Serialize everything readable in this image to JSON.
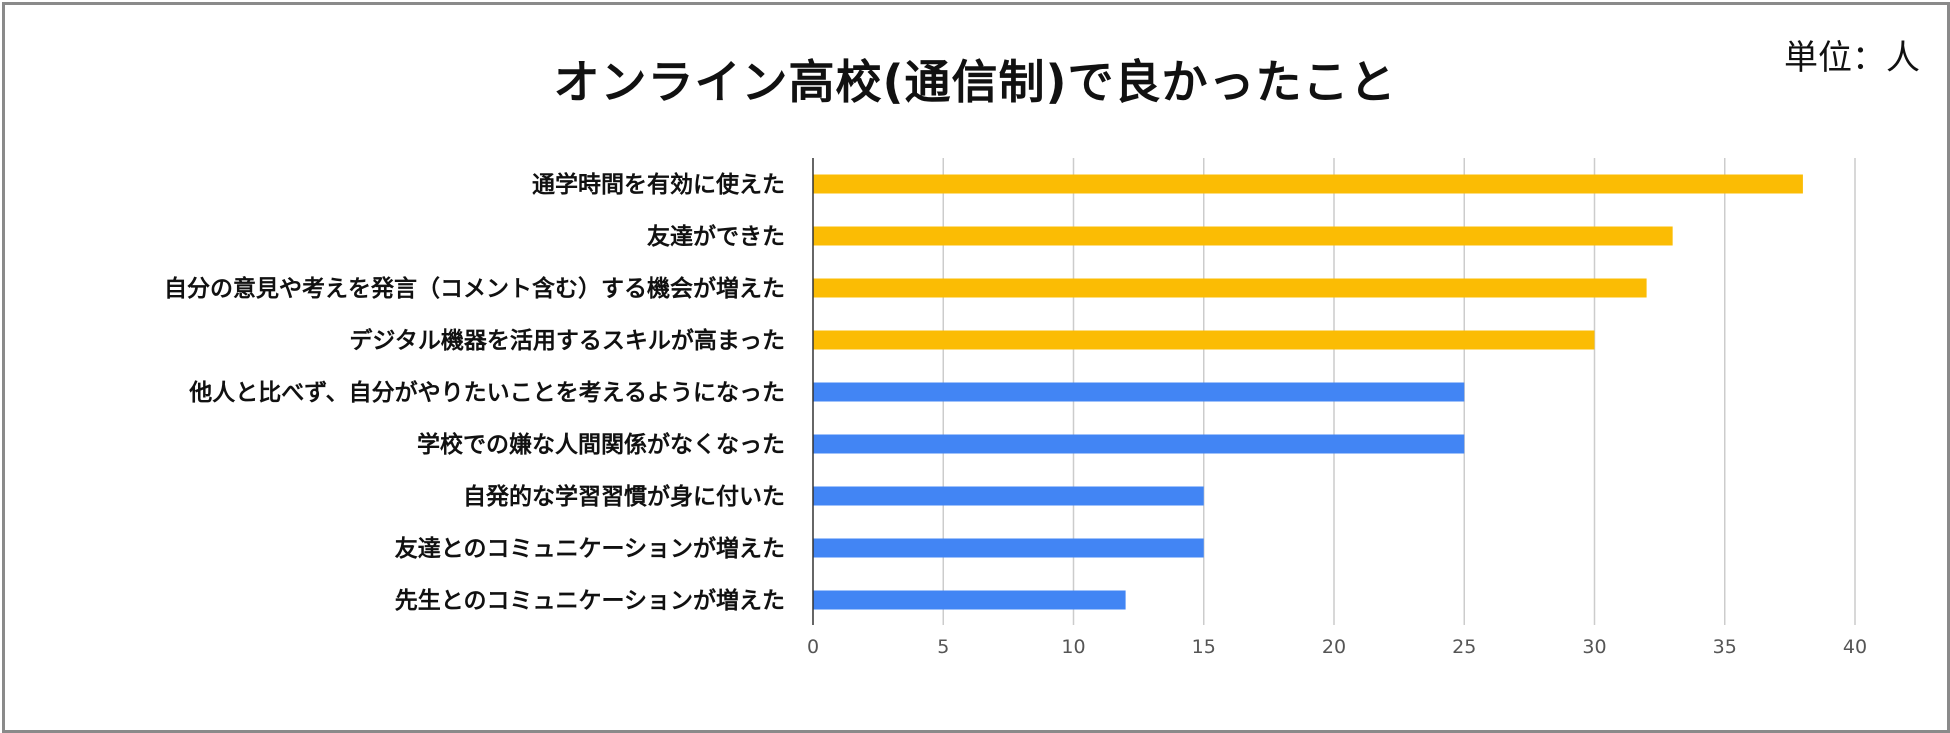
{
  "title": "オンライン高校(通信制)で良かったこと",
  "unit_label": "単位：人",
  "colors": {
    "highlight": "#FBBC04",
    "base": "#4285F4",
    "grid": "#cccccc",
    "axis": "#333333"
  },
  "chart_data": {
    "type": "bar",
    "orientation": "horizontal",
    "title": "オンライン高校(通信制)で良かったこと",
    "xlabel": "",
    "ylabel": "",
    "xlim": [
      0,
      40
    ],
    "x_ticks": [
      0,
      5,
      10,
      15,
      20,
      25,
      30,
      35,
      40
    ],
    "grid": true,
    "categories": [
      "通学時間を有効に使えた",
      "友達ができた",
      "自分の意見や考えを発言（コメント含む）する機会が増えた",
      "デジタル機器を活用するスキルが高まった",
      "他人と比べず、自分がやりたいことを考えるようになった",
      "学校での嫌な人間関係がなくなった",
      "自発的な学習習慣が身に付いた",
      "友達とのコミュニケーションが増えた",
      "先生とのコミュニケーションが増えた"
    ],
    "values": [
      38,
      33,
      32,
      30,
      25,
      25,
      15,
      15,
      12
    ],
    "bar_colors": [
      "#FBBC04",
      "#FBBC04",
      "#FBBC04",
      "#FBBC04",
      "#4285F4",
      "#4285F4",
      "#4285F4",
      "#4285F4",
      "#4285F4"
    ]
  }
}
